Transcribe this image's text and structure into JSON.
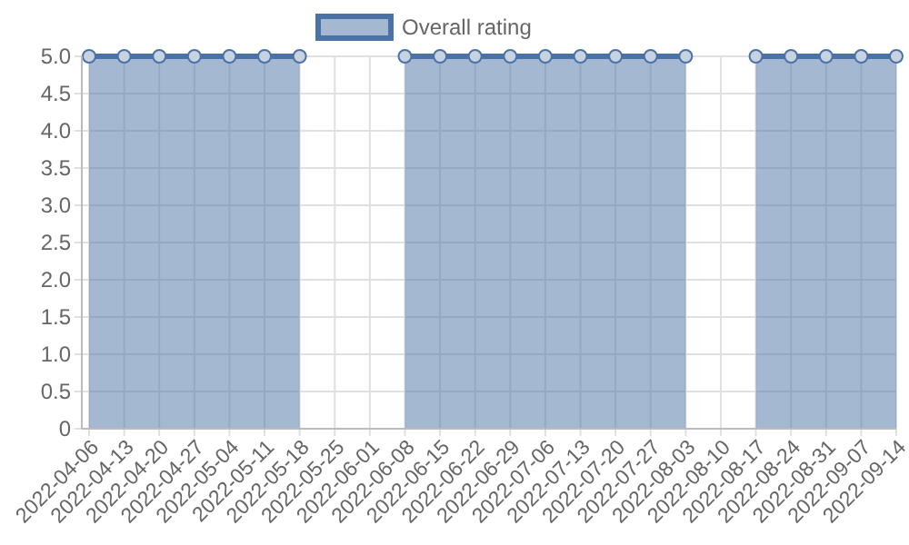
{
  "chart_data": {
    "type": "area",
    "categories": [
      "2022-04-06",
      "2022-04-13",
      "2022-04-20",
      "2022-04-27",
      "2022-05-04",
      "2022-05-11",
      "2022-05-18",
      "2022-05-25",
      "2022-06-01",
      "2022-06-08",
      "2022-06-15",
      "2022-06-22",
      "2022-06-29",
      "2022-07-06",
      "2022-07-13",
      "2022-07-20",
      "2022-07-27",
      "2022-08-03",
      "2022-08-10",
      "2022-08-17",
      "2022-08-24",
      "2022-08-31",
      "2022-09-07",
      "2022-09-14"
    ],
    "series": [
      {
        "name": "Overall rating",
        "color": "#4a72a6",
        "values": [
          5,
          5,
          5,
          5,
          5,
          5,
          5,
          null,
          null,
          5,
          5,
          5,
          5,
          5,
          5,
          5,
          5,
          5,
          null,
          5,
          5,
          5,
          5,
          5
        ]
      }
    ],
    "ylim": [
      0,
      5
    ],
    "yticks": [
      0,
      0.5,
      {
        "value": 1,
        "label": "1.0"
      },
      1.5,
      {
        "value": 2,
        "label": "2.0"
      },
      2.5,
      {
        "value": 3,
        "label": "3.0"
      },
      3.5,
      {
        "value": 4,
        "label": "4.0"
      },
      4.5,
      {
        "value": 5,
        "label": "5.0"
      }
    ],
    "grid": true,
    "legend": "top",
    "marker": "circle",
    "line_style": "solid"
  }
}
